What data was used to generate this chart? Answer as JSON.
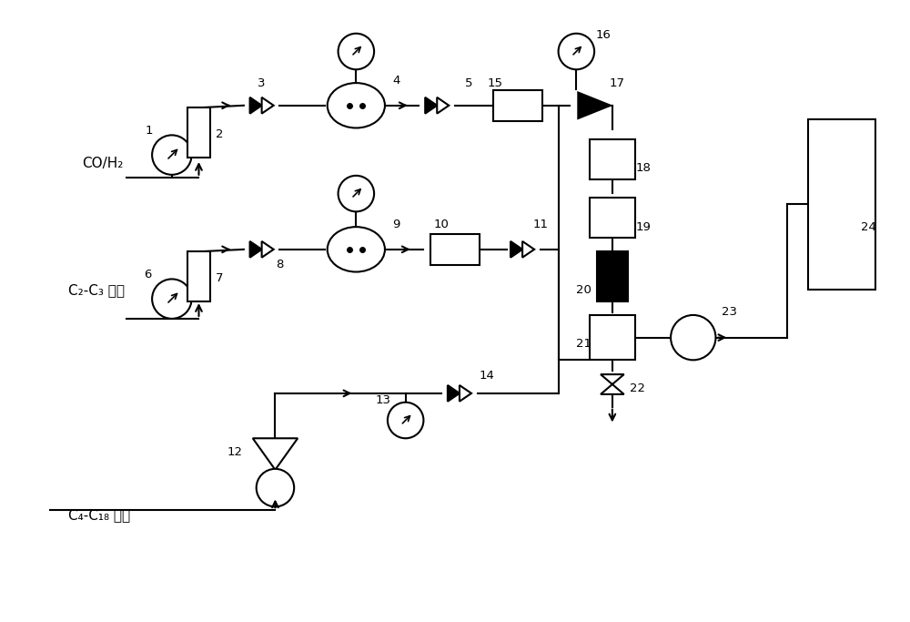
{
  "bg_color": "#ffffff",
  "line_color": "#000000",
  "figsize": [
    10.0,
    6.83
  ],
  "dpi": 100,
  "feed1": "CO/H₂",
  "feed2": "C₂-C₃ 烯烃",
  "feed3": "C₄-C₁₈ 烯烃"
}
